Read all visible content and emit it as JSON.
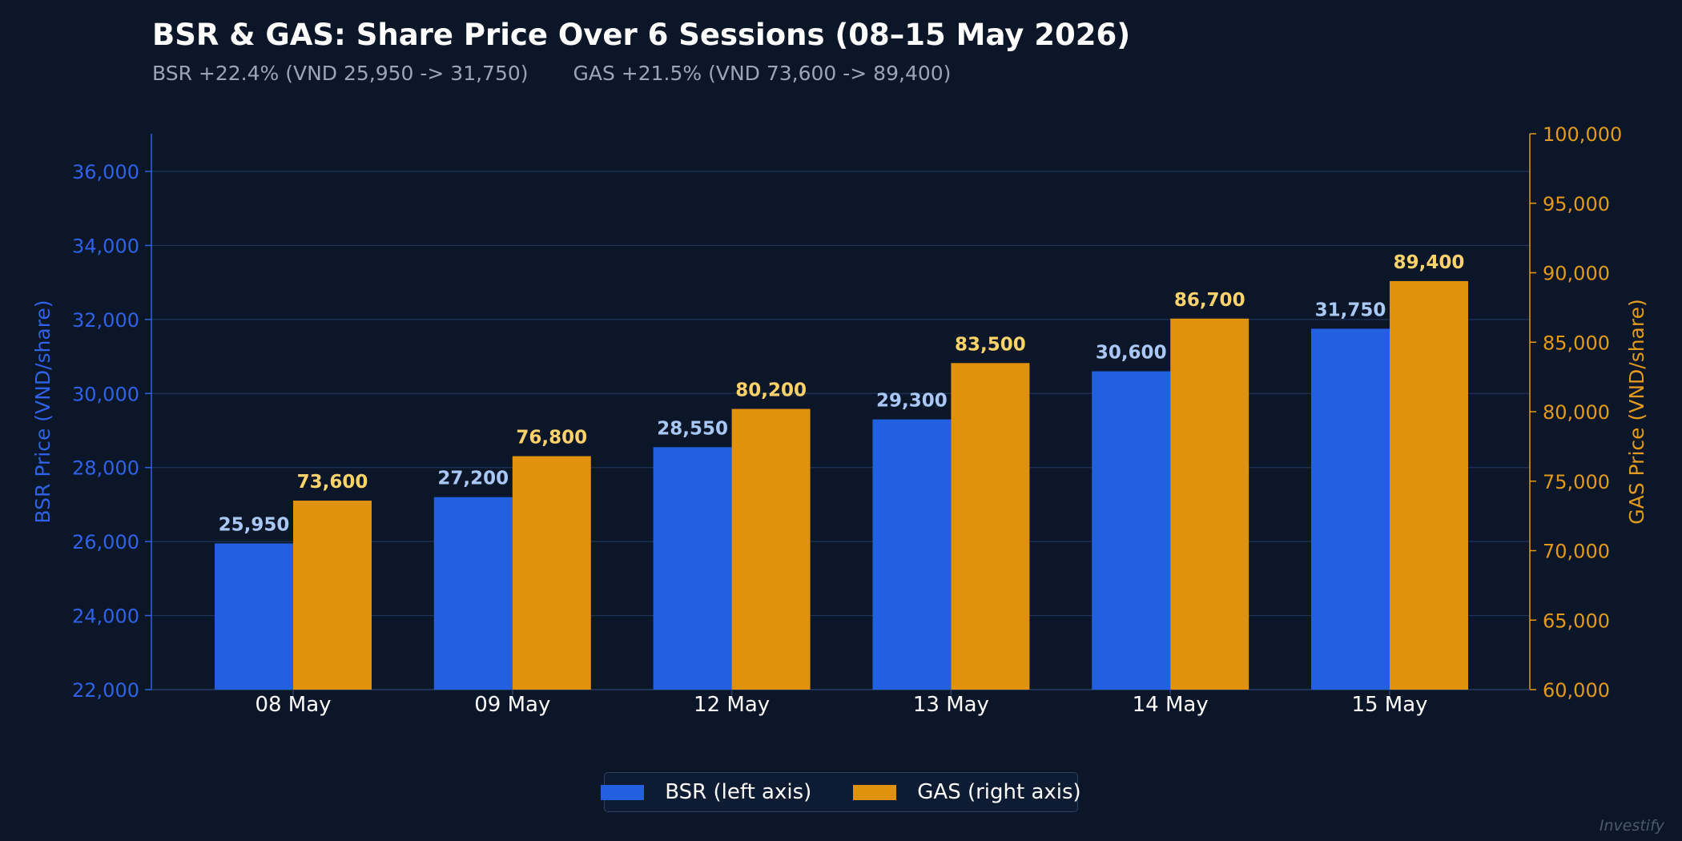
{
  "header": {
    "title": "BSR & GAS: Share Price Over 6 Sessions (08–15 May 2026)",
    "subtitle_bsr": "BSR +22.4%  (VND 25,950 -> 31,750)",
    "subtitle_gas": "GAS +21.5%  (VND 73,600 -> 89,400)"
  },
  "legend": {
    "bsr_label": "BSR (left axis)",
    "gas_label": "GAS (right axis)"
  },
  "watermark": "Investify",
  "colors": {
    "background": "#0b1628",
    "bsr": "#2360e0",
    "gas": "#e0920e",
    "bsr_label": "#a9c8f5",
    "gas_label": "#ffd36a",
    "left_axis": "#2f62e6",
    "right_axis": "#e19a1e",
    "grid": "#1f3358"
  },
  "chart_data": {
    "type": "bar",
    "title": "BSR & GAS: Share Price Over 6 Sessions (08–15 May 2026)",
    "categories": [
      "08 May",
      "09 May",
      "12 May",
      "13 May",
      "14 May",
      "15 May"
    ],
    "series": [
      {
        "name": "BSR (left axis)",
        "axis": "left",
        "values": [
          25950,
          27200,
          28550,
          29300,
          30600,
          31750
        ],
        "labels": [
          "25,950",
          "27,200",
          "28,550",
          "29,300",
          "30,600",
          "31,750"
        ]
      },
      {
        "name": "GAS (right axis)",
        "axis": "right",
        "values": [
          73600,
          76800,
          80200,
          83500,
          86700,
          89400
        ],
        "labels": [
          "73,600",
          "76,800",
          "80,200",
          "83,500",
          "86,700",
          "89,400"
        ]
      }
    ],
    "ylabel": "BSR Price (VND/share)",
    "y2label": "GAS Price (VND/share)",
    "ylim": [
      22000,
      37000
    ],
    "y2lim": [
      60000,
      100000
    ],
    "yticks": [
      22000,
      24000,
      26000,
      28000,
      30000,
      32000,
      34000,
      36000
    ],
    "yticklabels": [
      "22,000",
      "24,000",
      "26,000",
      "28,000",
      "30,000",
      "32,000",
      "34,000",
      "36,000"
    ],
    "y2ticks": [
      60000,
      65000,
      70000,
      75000,
      80000,
      85000,
      90000,
      95000,
      100000
    ],
    "y2ticklabels": [
      "60,000",
      "65,000",
      "70,000",
      "75,000",
      "80,000",
      "85,000",
      "90,000",
      "95,000",
      "100,000"
    ],
    "grid": true,
    "legend_position": "bottom-center"
  }
}
